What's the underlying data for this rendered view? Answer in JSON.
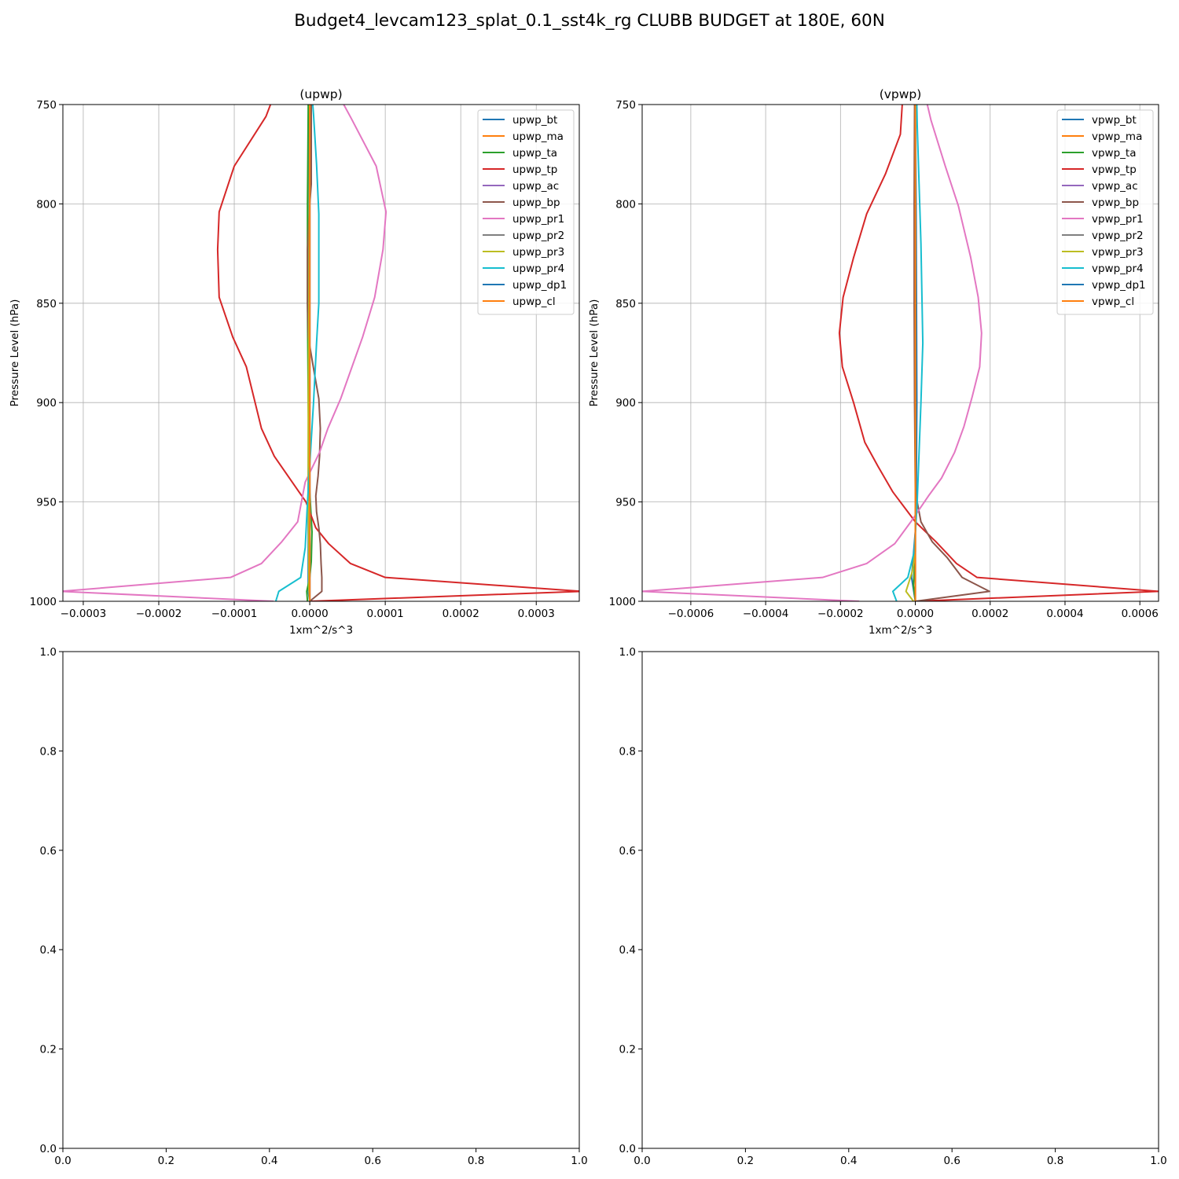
{
  "figure": {
    "suptitle": "Budget4_levcam123_splat_0.1_sst4k_rg CLUBB BUDGET at 180E, 60N"
  },
  "chart_data": [
    {
      "type": "line",
      "title": "(upwp)",
      "xlabel": "1xm^2/s^3",
      "ylabel": "Pressure Level (hPa)",
      "xlim": [
        -0.000327,
        0.000357
      ],
      "ylim": [
        1000,
        750
      ],
      "xticks": [
        -0.0003,
        -0.0002,
        -0.0001,
        0.0,
        0.0001,
        0.0002,
        0.0003
      ],
      "xtick_labels": [
        "−0.0003",
        "−0.0002",
        "−0.0001",
        "0.0000",
        "0.0001",
        "0.0002",
        "0.0003"
      ],
      "yticks": [
        750,
        800,
        850,
        900,
        950,
        1000
      ],
      "ytick_labels": [
        "750",
        "800",
        "850",
        "900",
        "950",
        "1000"
      ],
      "grid": true,
      "legend_position": "upper right",
      "series": [
        {
          "name": "upwp_bt",
          "color": "#1f77b4",
          "points": [
            [
              0.0,
              1000
            ],
            [
              -2e-06,
              995
            ],
            [
              -2e-06,
              940
            ],
            [
              -1e-06,
              850
            ],
            [
              -1e-06,
              750
            ]
          ]
        },
        {
          "name": "upwp_ma",
          "color": "#ff7f0e",
          "points": [
            [
              0.0,
              1000
            ],
            [
              0.0,
              750
            ]
          ]
        },
        {
          "name": "upwp_ta",
          "color": "#2ca02c",
          "points": [
            [
              -3e-06,
              1000
            ],
            [
              -4e-06,
              995
            ],
            [
              0.0,
              988
            ],
            [
              2e-06,
              980
            ],
            [
              3e-06,
              965
            ],
            [
              0.0,
              945
            ],
            [
              -2e-06,
              900
            ],
            [
              -3e-06,
              850
            ],
            [
              -3e-06,
              800
            ],
            [
              -2e-06,
              750
            ]
          ]
        },
        {
          "name": "upwp_tp",
          "color": "#d62728",
          "points": [
            [
              0.0,
              1000
            ],
            [
              0.00036,
              995
            ],
            [
              0.0001,
              988
            ],
            [
              5.4e-05,
              981
            ],
            [
              2.5e-05,
              971
            ],
            [
              8e-06,
              963
            ],
            [
              -5e-06,
              950
            ],
            [
              -4.7e-05,
              927
            ],
            [
              -6.4e-05,
              913
            ],
            [
              -8.4e-05,
              882
            ],
            [
              -0.000102,
              867
            ],
            [
              -0.00012,
              847
            ],
            [
              -0.000122,
              823
            ],
            [
              -0.00012,
              804
            ],
            [
              -0.0001,
              781
            ],
            [
              -5.8e-05,
              756
            ],
            [
              -5.2e-05,
              750
            ]
          ]
        },
        {
          "name": "upwp_ac",
          "color": "#9467bd",
          "points": [
            [
              0.0,
              1000
            ],
            [
              0.0,
              750
            ]
          ]
        },
        {
          "name": "upwp_bp",
          "color": "#8c564b",
          "points": [
            [
              0.0,
              1000
            ],
            [
              1.6e-05,
              995
            ],
            [
              1.6e-05,
              988
            ],
            [
              1.5e-05,
              981
            ],
            [
              1.4e-05,
              971
            ],
            [
              1.2e-05,
              963
            ],
            [
              9e-06,
              955
            ],
            [
              8e-06,
              947
            ],
            [
              1.1e-05,
              937
            ],
            [
              1.3e-05,
              927
            ],
            [
              1.4e-05,
              913
            ],
            [
              1.2e-05,
              898
            ],
            [
              6e-06,
              885
            ],
            [
              -2e-06,
              867
            ],
            [
              -3e-06,
              850
            ],
            [
              -3e-06,
              823
            ],
            [
              0.0,
              800
            ],
            [
              2e-06,
              790
            ],
            [
              2e-06,
              750
            ]
          ]
        },
        {
          "name": "upwp_pr1",
          "color": "#e377c2",
          "points": [
            [
              -4.8e-05,
              1000
            ],
            [
              -0.00033,
              995
            ],
            [
              -0.000105,
              988
            ],
            [
              -6.4e-05,
              981
            ],
            [
              -3.7e-05,
              970
            ],
            [
              -1.6e-05,
              960
            ],
            [
              -6e-06,
              940
            ],
            [
              1.3e-05,
              925
            ],
            [
              2.4e-05,
              913
            ],
            [
              4.1e-05,
              898
            ],
            [
              7e-05,
              867
            ],
            [
              8.6e-05,
              847
            ],
            [
              9.7e-05,
              823
            ],
            [
              0.000101,
              804
            ],
            [
              8.8e-05,
              781
            ],
            [
              5.5e-05,
              757
            ],
            [
              4.5e-05,
              750
            ]
          ]
        },
        {
          "name": "upwp_pr2",
          "color": "#7f7f7f",
          "points": [
            [
              0.0,
              1000
            ],
            [
              0.0,
              750
            ]
          ]
        },
        {
          "name": "upwp_pr3",
          "color": "#bcbd22",
          "points": [
            [
              0.0,
              1000
            ],
            [
              -1e-06,
              995
            ],
            [
              -2e-06,
              940
            ],
            [
              -2e-06,
              900
            ],
            [
              -1e-06,
              850
            ],
            [
              0.0,
              750
            ]
          ]
        },
        {
          "name": "upwp_pr4",
          "color": "#17becf",
          "points": [
            [
              -4.5e-05,
              1000
            ],
            [
              -4.1e-05,
              995
            ],
            [
              -1.2e-05,
              988
            ],
            [
              -6e-06,
              973
            ],
            [
              -3e-06,
              950
            ],
            [
              5e-06,
              900
            ],
            [
              9e-06,
              870
            ],
            [
              1.2e-05,
              850
            ],
            [
              1.2e-05,
              830
            ],
            [
              1.2e-05,
              805
            ],
            [
              9e-06,
              780
            ],
            [
              5e-06,
              755
            ],
            [
              4e-06,
              750
            ]
          ]
        },
        {
          "name": "upwp_dp1",
          "color": "#1f77b4",
          "points": [
            [
              0.0,
              1000
            ],
            [
              0.0,
              750
            ]
          ]
        },
        {
          "name": "upwp_cl",
          "color": "#ff7f0e",
          "points": [
            [
              0.0,
              1000
            ],
            [
              0.0,
              750
            ]
          ]
        }
      ]
    },
    {
      "type": "line",
      "title": "(vpwp)",
      "xlabel": "1xm^2/s^3",
      "ylabel": "Pressure Level (hPa)",
      "xlim": [
        -0.00073,
        0.00065
      ],
      "ylim": [
        1000,
        750
      ],
      "xticks": [
        -0.0006,
        -0.0004,
        -0.0002,
        0.0,
        0.0002,
        0.0004,
        0.0006
      ],
      "xtick_labels": [
        "−0.0006",
        "−0.0004",
        "−0.0002",
        "0.0000",
        "0.0002",
        "0.0004",
        "0.0006"
      ],
      "yticks": [
        750,
        800,
        850,
        900,
        950,
        1000
      ],
      "ytick_labels": [
        "750",
        "800",
        "850",
        "900",
        "950",
        "1000"
      ],
      "grid": true,
      "legend_position": "upper right",
      "series": [
        {
          "name": "vpwp_bt",
          "color": "#1f77b4",
          "points": [
            [
              0.0,
              1000
            ],
            [
              -1e-05,
              988
            ],
            [
              2e-06,
              960
            ],
            [
              4e-06,
              900
            ],
            [
              2e-06,
              800
            ],
            [
              0.0,
              750
            ]
          ]
        },
        {
          "name": "vpwp_ma",
          "color": "#ff7f0e",
          "points": [
            [
              0.0,
              1000
            ],
            [
              0.0,
              750
            ]
          ]
        },
        {
          "name": "vpwp_ta",
          "color": "#2ca02c",
          "points": [
            [
              0.0,
              1000
            ],
            [
              -5e-06,
              992
            ],
            [
              0.0,
              975
            ],
            [
              0.0,
              750
            ]
          ]
        },
        {
          "name": "vpwp_tp",
          "color": "#d62728",
          "points": [
            [
              0.0,
              1000
            ],
            [
              0.00065,
              995
            ],
            [
              0.000165,
              988
            ],
            [
              0.00011,
              981
            ],
            [
              5.5e-05,
              970
            ],
            [
              0.0,
              960
            ],
            [
              -6e-05,
              945
            ],
            [
              -0.0001,
              932
            ],
            [
              -0.000135,
              920
            ],
            [
              -0.000165,
              900
            ],
            [
              -0.000195,
              882
            ],
            [
              -0.000203,
              865
            ],
            [
              -0.000193,
              847
            ],
            [
              -0.000165,
              827
            ],
            [
              -0.00013,
              805
            ],
            [
              -8e-05,
              785
            ],
            [
              -4e-05,
              765
            ],
            [
              -3.5e-05,
              750
            ]
          ]
        },
        {
          "name": "vpwp_ac",
          "color": "#9467bd",
          "points": [
            [
              0.0,
              1000
            ],
            [
              0.0,
              750
            ]
          ]
        },
        {
          "name": "vpwp_bp",
          "color": "#8c564b",
          "points": [
            [
              0.0,
              1000
            ],
            [
              0.000198,
              995
            ],
            [
              0.000125,
              988
            ],
            [
              8.5e-05,
              978
            ],
            [
              4.5e-05,
              970
            ],
            [
              1.5e-05,
              960
            ],
            [
              5e-06,
              950
            ],
            [
              0.0,
              945
            ],
            [
              -2e-06,
              900
            ],
            [
              -3e-06,
              850
            ],
            [
              -3e-06,
              800
            ],
            [
              -2e-06,
              750
            ]
          ]
        },
        {
          "name": "vpwp_pr1",
          "color": "#e377c2",
          "points": [
            [
              -0.00015,
              1000
            ],
            [
              -0.00073,
              995
            ],
            [
              -0.000248,
              988
            ],
            [
              -0.00013,
              981
            ],
            [
              -5.5e-05,
              971
            ],
            [
              -1.2e-05,
              960
            ],
            [
              3.5e-05,
              947
            ],
            [
              7e-05,
              938
            ],
            [
              0.000105,
              925
            ],
            [
              0.00013,
              912
            ],
            [
              0.000152,
              897
            ],
            [
              0.000172,
              882
            ],
            [
              0.000177,
              865
            ],
            [
              0.000168,
              847
            ],
            [
              0.000148,
              827
            ],
            [
              0.000115,
              801
            ],
            [
              8e-05,
              781
            ],
            [
              4.2e-05,
              758
            ],
            [
              3.2e-05,
              750
            ]
          ]
        },
        {
          "name": "vpwp_pr2",
          "color": "#7f7f7f",
          "points": [
            [
              0.0,
              1000
            ],
            [
              0.0,
              750
            ]
          ]
        },
        {
          "name": "vpwp_pr3",
          "color": "#bcbd22",
          "points": [
            [
              -5e-06,
              1000
            ],
            [
              -2.5e-05,
              995
            ],
            [
              -8e-06,
              985
            ],
            [
              0.0,
              975
            ],
            [
              0.0,
              750
            ]
          ]
        },
        {
          "name": "vpwp_pr4",
          "color": "#17becf",
          "points": [
            [
              -5e-05,
              1000
            ],
            [
              -6e-05,
              995
            ],
            [
              -2e-05,
              988
            ],
            [
              -3e-06,
              975
            ],
            [
              5e-06,
              950
            ],
            [
              1.5e-05,
              900
            ],
            [
              2e-05,
              870
            ],
            [
              1.8e-05,
              850
            ],
            [
              1.5e-05,
              820
            ],
            [
              1e-05,
              790
            ],
            [
              5e-06,
              760
            ],
            [
              4e-06,
              750
            ]
          ]
        },
        {
          "name": "vpwp_dp1",
          "color": "#1f77b4",
          "points": [
            [
              0.0,
              1000
            ],
            [
              0.0,
              750
            ]
          ]
        },
        {
          "name": "vpwp_cl",
          "color": "#ff7f0e",
          "points": [
            [
              0.0,
              1000
            ],
            [
              0.0,
              750
            ]
          ]
        }
      ]
    },
    {
      "type": "line",
      "title": "",
      "xlim": [
        0,
        1
      ],
      "ylim": [
        0,
        1
      ],
      "xticks": [
        0.0,
        0.2,
        0.4,
        0.6,
        0.8,
        1.0
      ],
      "xtick_labels": [
        "0.0",
        "0.2",
        "0.4",
        "0.6",
        "0.8",
        "1.0"
      ],
      "yticks": [
        0.0,
        0.2,
        0.4,
        0.6,
        0.8,
        1.0
      ],
      "ytick_labels": [
        "0.0",
        "0.2",
        "0.4",
        "0.6",
        "0.8",
        "1.0"
      ],
      "grid": false,
      "series": []
    },
    {
      "type": "line",
      "title": "",
      "xlim": [
        0,
        1
      ],
      "ylim": [
        0,
        1
      ],
      "xticks": [
        0.0,
        0.2,
        0.4,
        0.6,
        0.8,
        1.0
      ],
      "xtick_labels": [
        "0.0",
        "0.2",
        "0.4",
        "0.6",
        "0.8",
        "1.0"
      ],
      "yticks": [
        0.0,
        0.2,
        0.4,
        0.6,
        0.8,
        1.0
      ],
      "ytick_labels": [
        "0.0",
        "0.2",
        "0.4",
        "0.6",
        "0.8",
        "1.0"
      ],
      "grid": false,
      "series": []
    }
  ]
}
